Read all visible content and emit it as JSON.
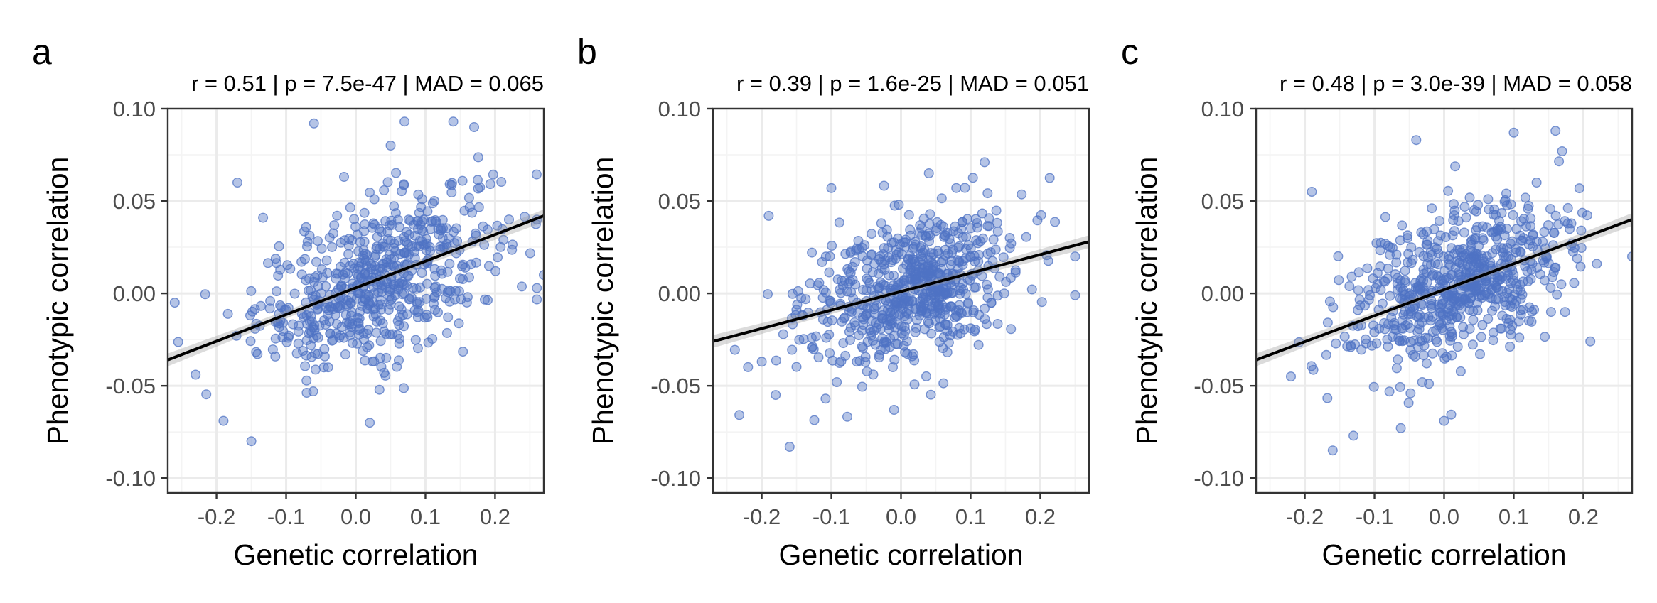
{
  "chart_data": [
    {
      "panel_label": "a",
      "type": "scatter",
      "title": "r = 0.51 | p = 7.5e-47 | MAD = 0.065",
      "xlabel": "Genetic correlation",
      "ylabel": "Phenotypic correlation",
      "xlim": [
        -0.27,
        0.27
      ],
      "ylim": [
        -0.108,
        0.1
      ],
      "xticks": [
        -0.2,
        -0.1,
        0.0,
        0.1,
        0.2
      ],
      "xtick_labels": [
        "-0.2",
        "-0.1",
        "0.0",
        "0.1",
        "0.2"
      ],
      "yticks": [
        -0.1,
        -0.05,
        0.0,
        0.05,
        0.1
      ],
      "ytick_labels": [
        "-0.10",
        "-0.05",
        "0.00",
        "0.05",
        "0.10"
      ],
      "fit_line": {
        "x": [
          -0.27,
          0.27
        ],
        "y": [
          -0.036,
          0.042
        ]
      },
      "grid": true,
      "point_count": 600,
      "points_summary": {
        "x_mean": 0.03,
        "x_sd": 0.085,
        "slope": 0.145,
        "intercept": 0.003,
        "resid_sd": 0.021
      },
      "points_notable": [
        [
          -0.26,
          -0.005
        ],
        [
          -0.23,
          -0.044
        ],
        [
          -0.17,
          0.06
        ],
        [
          -0.15,
          -0.08
        ],
        [
          -0.06,
          0.092
        ],
        [
          0.05,
          0.08
        ],
        [
          0.07,
          0.093
        ],
        [
          0.14,
          0.093
        ],
        [
          0.17,
          0.09
        ],
        [
          0.02,
          -0.07
        ],
        [
          0.22,
          0.04
        ],
        [
          0.27,
          0.01
        ],
        [
          -0.19,
          -0.069
        ]
      ]
    },
    {
      "panel_label": "b",
      "type": "scatter",
      "title": "r = 0.39 | p = 1.6e-25 | MAD = 0.051",
      "xlabel": "Genetic correlation",
      "ylabel": "Phenotypic correlation",
      "xlim": [
        -0.27,
        0.27
      ],
      "ylim": [
        -0.108,
        0.1
      ],
      "xticks": [
        -0.2,
        -0.1,
        0.0,
        0.1,
        0.2
      ],
      "xtick_labels": [
        "-0.2",
        "-0.1",
        "0.0",
        "0.1",
        "0.2"
      ],
      "yticks": [
        -0.1,
        -0.05,
        0.0,
        0.05,
        0.1
      ],
      "ytick_labels": [
        "-0.10",
        "-0.05",
        "0.00",
        "0.05",
        "0.10"
      ],
      "fit_line": {
        "x": [
          -0.27,
          0.27
        ],
        "y": [
          -0.026,
          0.028
        ]
      },
      "grid": true,
      "point_count": 650,
      "points_summary": {
        "x_mean": 0.01,
        "x_sd": 0.075,
        "slope": 0.1,
        "intercept": 0.001,
        "resid_sd": 0.019
      },
      "points_notable": [
        [
          -0.2,
          -0.037
        ],
        [
          -0.19,
          0.042
        ],
        [
          -0.16,
          -0.083
        ],
        [
          -0.1,
          0.057
        ],
        [
          0.12,
          0.071
        ],
        [
          0.04,
          0.065
        ],
        [
          0.25,
          -0.001
        ],
        [
          0.25,
          0.02
        ],
        [
          -0.01,
          -0.063
        ],
        [
          -0.18,
          -0.055
        ]
      ]
    },
    {
      "panel_label": "c",
      "type": "scatter",
      "title": "r = 0.48 | p = 3.0e-39 | MAD = 0.058",
      "xlabel": "Genetic correlation",
      "ylabel": "Phenotypic correlation",
      "xlim": [
        -0.27,
        0.27
      ],
      "ylim": [
        -0.108,
        0.1
      ],
      "xticks": [
        -0.2,
        -0.1,
        0.0,
        0.1,
        0.2
      ],
      "xtick_labels": [
        "-0.2",
        "-0.1",
        "0.0",
        "0.1",
        "0.2"
      ],
      "yticks": [
        -0.1,
        -0.05,
        0.0,
        0.05,
        0.1
      ],
      "ytick_labels": [
        "-0.10",
        "-0.05",
        "0.00",
        "0.05",
        "0.10"
      ],
      "fit_line": {
        "x": [
          -0.27,
          0.27
        ],
        "y": [
          -0.036,
          0.04
        ]
      },
      "grid": true,
      "point_count": 650,
      "points_summary": {
        "x_mean": 0.02,
        "x_sd": 0.08,
        "slope": 0.14,
        "intercept": 0.002,
        "resid_sd": 0.02
      },
      "points_notable": [
        [
          -0.19,
          0.055
        ],
        [
          -0.22,
          -0.045
        ],
        [
          -0.16,
          -0.085
        ],
        [
          -0.04,
          0.083
        ],
        [
          0.1,
          0.087
        ],
        [
          0.16,
          0.088
        ],
        [
          0.21,
          -0.026
        ],
        [
          0.27,
          0.02
        ],
        [
          -0.13,
          -0.077
        ],
        [
          0.0,
          -0.069
        ]
      ]
    }
  ]
}
